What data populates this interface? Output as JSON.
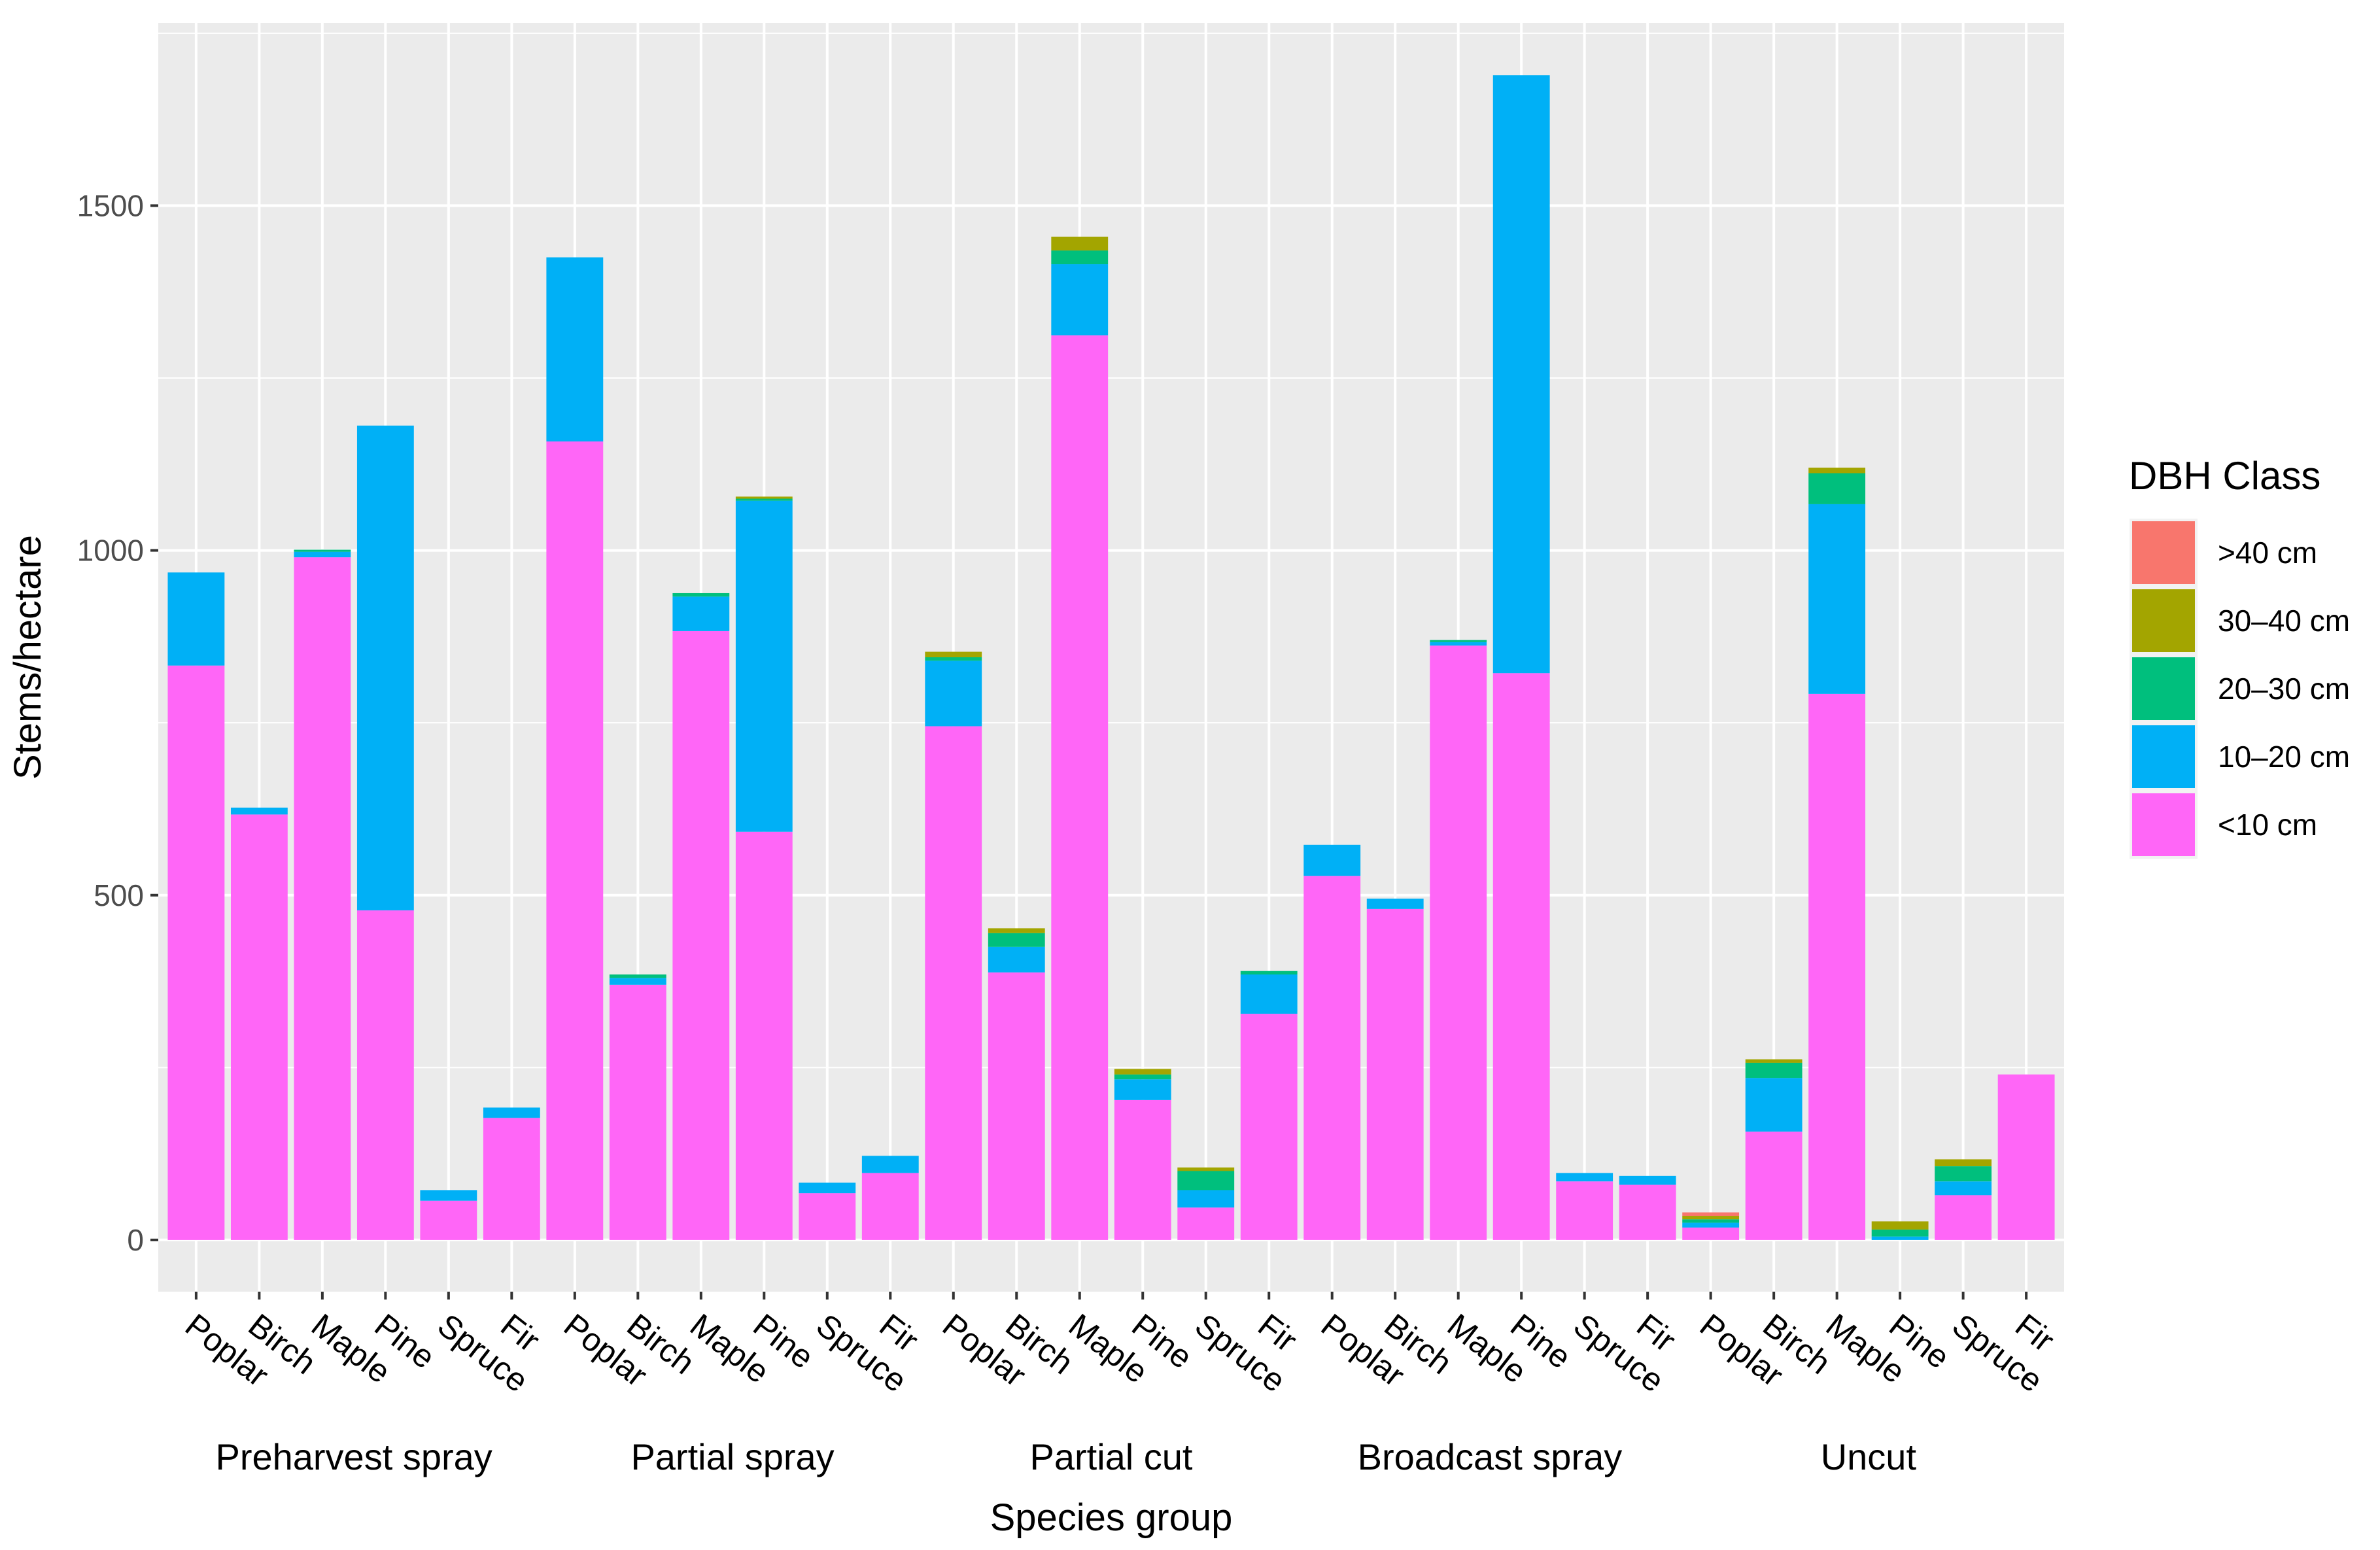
{
  "chart_data": {
    "type": "bar",
    "stacked": true,
    "xlabel": "Species group",
    "ylabel": "Stems/hectare",
    "ylim": [
      -75,
      1765
    ],
    "yticks": [
      0,
      500,
      1000,
      1500
    ],
    "legend": {
      "title": "DBH Class",
      "placement": "right",
      "entries": [
        ">40 cm",
        "30–40 cm",
        "20–30 cm",
        "10–20 cm",
        "<10 cm"
      ]
    },
    "colors": {
      ">40 cm": "#F8766D",
      "30–40 cm": "#A3A500",
      "20–30 cm": "#00BF7D",
      "10–20 cm": "#00B0F6",
      "<10 cm": "#FF66F7"
    },
    "series_order": [
      "<10 cm",
      "10–20 cm",
      "20–30 cm",
      "30–40 cm",
      ">40 cm"
    ],
    "species": [
      "Poplar",
      "Birch",
      "Maple",
      "Pine",
      "Spruce",
      "Fir"
    ],
    "groups": [
      {
        "name": "Preharvest spray",
        "bars": [
          {
            "species": "Poplar",
            "values": [
              833,
              135,
              0,
              0,
              0
            ]
          },
          {
            "species": "Birch",
            "values": [
              617,
              10,
              0,
              0,
              0
            ]
          },
          {
            "species": "Maple",
            "values": [
              990,
              8,
              3,
              0,
              0
            ]
          },
          {
            "species": "Pine",
            "values": [
              478,
              703,
              0,
              0,
              0
            ]
          },
          {
            "species": "Spruce",
            "values": [
              57,
              15,
              0,
              0,
              0
            ]
          },
          {
            "species": "Fir",
            "values": [
              177,
              15,
              0,
              0,
              0
            ]
          }
        ]
      },
      {
        "name": "Partial spray",
        "bars": [
          {
            "species": "Poplar",
            "values": [
              1158,
              267,
              0,
              0,
              0
            ]
          },
          {
            "species": "Birch",
            "values": [
              370,
              10,
              5,
              0,
              0
            ]
          },
          {
            "species": "Maple",
            "values": [
              883,
              50,
              5,
              0,
              0
            ]
          },
          {
            "species": "Pine",
            "values": [
              592,
              480,
              3,
              3,
              0
            ]
          },
          {
            "species": "Spruce",
            "values": [
              68,
              15,
              0,
              0,
              0
            ]
          },
          {
            "species": "Fir",
            "values": [
              97,
              25,
              0,
              0,
              0
            ]
          }
        ]
      },
      {
        "name": "Partial cut",
        "bars": [
          {
            "species": "Poplar",
            "values": [
              745,
              95,
              5,
              8,
              0
            ]
          },
          {
            "species": "Birch",
            "values": [
              388,
              37,
              20,
              7,
              0
            ]
          },
          {
            "species": "Maple",
            "values": [
              1312,
              103,
              20,
              20,
              0
            ]
          },
          {
            "species": "Pine",
            "values": [
              203,
              30,
              7,
              8,
              0
            ]
          },
          {
            "species": "Spruce",
            "values": [
              47,
              25,
              28,
              5,
              0
            ]
          },
          {
            "species": "Fir",
            "values": [
              328,
              57,
              5,
              0,
              0
            ]
          }
        ]
      },
      {
        "name": "Broadcast spray",
        "bars": [
          {
            "species": "Poplar",
            "values": [
              528,
              45,
              0,
              0,
              0
            ]
          },
          {
            "species": "Birch",
            "values": [
              480,
              15,
              0,
              0,
              0
            ]
          },
          {
            "species": "Maple",
            "values": [
              862,
              5,
              3,
              0,
              0
            ]
          },
          {
            "species": "Pine",
            "values": [
              822,
              867,
              0,
              0,
              0
            ]
          },
          {
            "species": "Spruce",
            "values": [
              85,
              12,
              0,
              0,
              0
            ]
          },
          {
            "species": "Fir",
            "values": [
              80,
              13,
              0,
              0,
              0
            ]
          }
        ]
      },
      {
        "name": "Uncut",
        "bars": [
          {
            "species": "Poplar",
            "values": [
              18,
              7,
              5,
              5,
              5
            ]
          },
          {
            "species": "Birch",
            "values": [
              157,
              78,
              22,
              5,
              0
            ]
          },
          {
            "species": "Maple",
            "values": [
              792,
              275,
              45,
              8,
              0
            ]
          },
          {
            "species": "Pine",
            "values": [
              0,
              5,
              10,
              12,
              0
            ]
          },
          {
            "species": "Spruce",
            "values": [
              65,
              20,
              22,
              10,
              0
            ]
          },
          {
            "species": "Fir",
            "values": [
              240,
              0,
              0,
              0,
              0
            ]
          }
        ]
      }
    ]
  }
}
